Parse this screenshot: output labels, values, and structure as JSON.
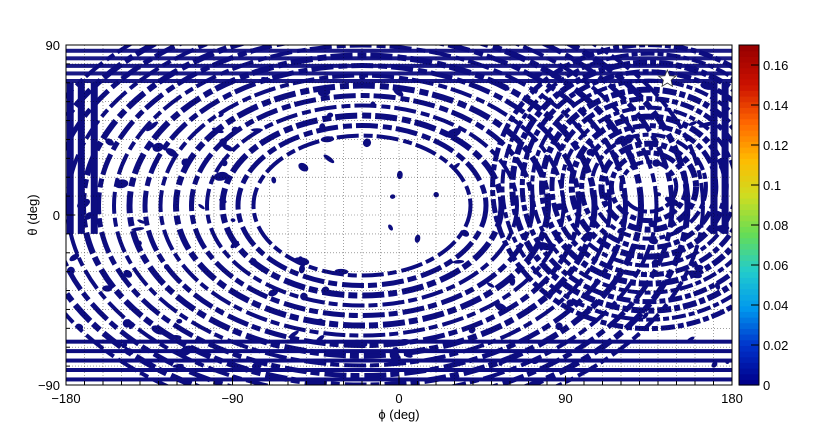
{
  "chart_data": {
    "type": "heatmap",
    "title": "",
    "xlabel": "ϕ (deg)",
    "ylabel": "θ (deg)",
    "xlim": [
      -180,
      180
    ],
    "ylim": [
      -90,
      90
    ],
    "x_ticks": [
      -180,
      -90,
      0,
      90,
      180
    ],
    "x_tick_labels": [
      "−180",
      "−90",
      "0",
      "90",
      "180"
    ],
    "y_ticks": [
      -90,
      0,
      90
    ],
    "y_tick_labels": [
      "−90",
      "0",
      "90"
    ],
    "grid": true,
    "colorbar": {
      "min": 0,
      "max": 0.17,
      "ticks": [
        0,
        0.02,
        0.04,
        0.06,
        0.08,
        0.1,
        0.12,
        0.14,
        0.16
      ],
      "tick_labels": [
        "0",
        "0.02",
        "0.04",
        "0.06",
        "0.08",
        "0.1",
        "0.12",
        "0.14",
        "0.16"
      ],
      "colors": [
        "#00008b",
        "#0033cc",
        "#0099ee",
        "#22cccc",
        "#66dd55",
        "#ccdd22",
        "#ffbb00",
        "#ff6600",
        "#cc1100",
        "#990000"
      ]
    },
    "fill_color": "#0d0d80",
    "marker": {
      "phi": 145,
      "theta": 72,
      "shape": "star"
    }
  }
}
